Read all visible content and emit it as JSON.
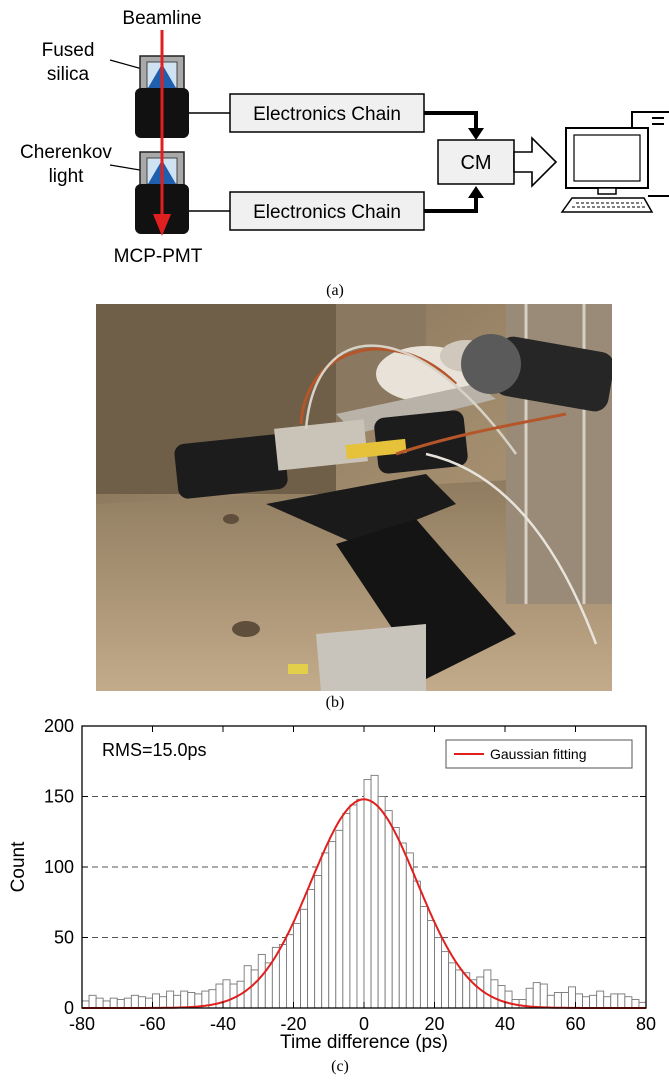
{
  "diagram": {
    "labels": {
      "beamline": "Beamline",
      "fused_silica_line1": "Fused",
      "fused_silica_line2": "silica",
      "cherenkov_line1": "Cherenkov",
      "cherenkov_line2": "light",
      "mcp_pmt": "MCP-PMT",
      "electronics_top": "Electronics Chain",
      "electronics_bottom": "Electronics Chain",
      "cm": "CM"
    },
    "colors": {
      "beam": "#e0201e",
      "silica": "#1f5fae",
      "pmt": "#111111",
      "box_fill": "#f0f0f0"
    }
  },
  "captions": {
    "a": "(a)",
    "b": "(b)",
    "c": "(c)"
  },
  "photo": {
    "icon": "experimental-setup-photo"
  },
  "chart_data": {
    "type": "bar",
    "xlabel": "Time difference (ps)",
    "ylabel": "Count",
    "xlim": [
      -80,
      80
    ],
    "ylim": [
      0,
      200
    ],
    "xticks": [
      "-80",
      "-60",
      "-40",
      "-20",
      "0",
      "20",
      "40",
      "60",
      "80"
    ],
    "yticks": [
      "0",
      "50",
      "100",
      "150",
      "200"
    ],
    "grid": "dashed horizontal",
    "annotation": "RMS=15.0ps",
    "legend": {
      "label": "Gaussian fitting",
      "placement": "top-right"
    },
    "fit": {
      "amplitude": 148,
      "mean": 0,
      "sigma": 15.0,
      "color": "#e0201e"
    },
    "bin_width": 2,
    "bin_start": -80,
    "counts": [
      5,
      9,
      7,
      5,
      7,
      6,
      7,
      9,
      8,
      7,
      10,
      8,
      12,
      9,
      12,
      11,
      10,
      12,
      13,
      17,
      20,
      17,
      19,
      30,
      27,
      38,
      32,
      43,
      45,
      52,
      60,
      70,
      84,
      94,
      110,
      118,
      126,
      138,
      144,
      148,
      162,
      165,
      150,
      140,
      128,
      117,
      110,
      90,
      72,
      62,
      50,
      40,
      32,
      27,
      25,
      20,
      22,
      27,
      20,
      16,
      12,
      6,
      6,
      14,
      18,
      17,
      9,
      11,
      11,
      15,
      10,
      8,
      9,
      12,
      8,
      10,
      10,
      8,
      6,
      4
    ]
  }
}
